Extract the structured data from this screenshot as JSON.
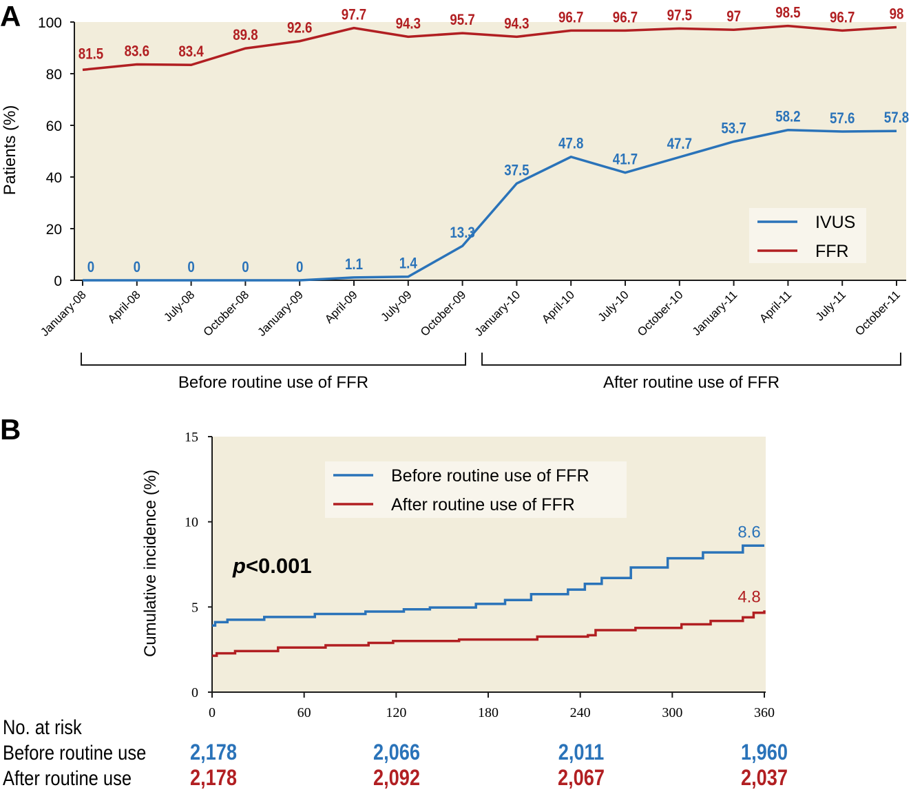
{
  "colors": {
    "blue": "#2a73b9",
    "red": "#b11f22",
    "plot_bg": "#f2eddb",
    "legend_bg": "#f8f5ec",
    "axis": "#1a1a1a"
  },
  "chart_data": [
    {
      "panel": "A",
      "type": "line",
      "ylabel": "Patients (%)",
      "ylim": [
        0,
        100
      ],
      "yticks": [
        0,
        20,
        40,
        60,
        80,
        100
      ],
      "categories": [
        "January-08",
        "April-08",
        "July-08",
        "October-08",
        "January-09",
        "April-09",
        "July-09",
        "October-09",
        "January-10",
        "April-10",
        "July-10",
        "October-10",
        "January-11",
        "April-11",
        "July-11",
        "October-11"
      ],
      "series": [
        {
          "name": "IVUS",
          "color": "blue",
          "values": [
            0,
            0,
            0,
            0,
            0,
            1.1,
            1.4,
            13.3,
            37.5,
            47.8,
            41.7,
            47.7,
            53.7,
            58.2,
            57.6,
            57.8
          ]
        },
        {
          "name": "FFR",
          "color": "red",
          "values": [
            81.5,
            83.6,
            83.4,
            89.8,
            92.6,
            97.7,
            94.3,
            95.7,
            94.3,
            96.7,
            96.7,
            97.5,
            97,
            98.5,
            96.7,
            98
          ]
        }
      ],
      "legend_position": "bottom-right",
      "periods": [
        {
          "label": "Before routine use of FFR",
          "from": "January-08",
          "to": "October-09"
        },
        {
          "label": "After routine use of FFR",
          "from": "January-10",
          "to": "October-11"
        }
      ]
    },
    {
      "panel": "B",
      "type": "line",
      "step": true,
      "ylabel": "Cumulative incidence (%)",
      "ylim": [
        0,
        15
      ],
      "yticks": [
        0,
        5,
        10,
        15
      ],
      "xlim": [
        0,
        360
      ],
      "xticks": [
        0,
        60,
        120,
        180,
        240,
        300,
        360
      ],
      "annotation": {
        "p_symbol": "p",
        "p_text": "<0.001"
      },
      "legend_position": "top-center",
      "series": [
        {
          "name": "Before routine use of FFR",
          "color": "blue",
          "end_label": "8.6",
          "points": [
            [
              0,
              3.91
            ],
            [
              2,
              4.11
            ],
            [
              10,
              4.25
            ],
            [
              34,
              4.41
            ],
            [
              67,
              4.59
            ],
            [
              100,
              4.73
            ],
            [
              125,
              4.86
            ],
            [
              142,
              4.97
            ],
            [
              172,
              5.18
            ],
            [
              191,
              5.41
            ],
            [
              208,
              5.75
            ],
            [
              232,
              6.02
            ],
            [
              243,
              6.36
            ],
            [
              254,
              6.7
            ],
            [
              273,
              7.32
            ],
            [
              297,
              7.86
            ],
            [
              320,
              8.2
            ],
            [
              346,
              8.6
            ],
            [
              360,
              8.6
            ]
          ]
        },
        {
          "name": "After routine use of FFR",
          "color": "red",
          "end_label": "4.8",
          "points": [
            [
              0,
              2.14
            ],
            [
              3,
              2.28
            ],
            [
              15,
              2.41
            ],
            [
              43,
              2.62
            ],
            [
              74,
              2.75
            ],
            [
              102,
              2.89
            ],
            [
              118,
              3.0
            ],
            [
              161,
              3.09
            ],
            [
              212,
              3.26
            ],
            [
              245,
              3.34
            ],
            [
              250,
              3.64
            ],
            [
              276,
              3.77
            ],
            [
              306,
              3.98
            ],
            [
              325,
              4.18
            ],
            [
              346,
              4.39
            ],
            [
              353,
              4.66
            ],
            [
              360,
              4.8
            ]
          ]
        }
      ],
      "risk_table": {
        "title": "No. at risk",
        "days": [
          0,
          120,
          240,
          360
        ],
        "rows": [
          {
            "label": "Before routine use",
            "color": "blue",
            "values": [
              "2,178",
              "2,066",
              "2,011",
              "1,960"
            ]
          },
          {
            "label": "After routine use",
            "color": "red",
            "values": [
              "2,178",
              "2,092",
              "2,067",
              "2,037"
            ]
          }
        ]
      }
    }
  ]
}
